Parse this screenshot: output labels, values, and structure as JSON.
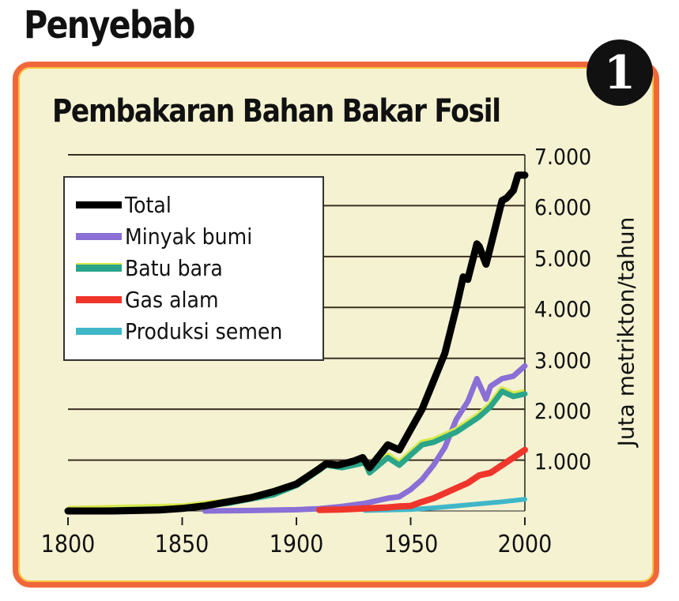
{
  "header": {
    "section_title": "Penyebab",
    "badge_number": "1"
  },
  "colors": {
    "panel_background": "#f5f2d2",
    "panel_border": "#f0673a",
    "total": "#000000",
    "minyak_bumi": "#8a6fd6",
    "batu_bara": "#2aa58a",
    "gas_alam": "#f0352a",
    "produksi_semen": "#3fb7c9"
  },
  "chart_data": {
    "type": "line",
    "title": "Pembakaran Bahan Bakar Fosil",
    "xlabel": "",
    "ylabel": "Juta metrikton/tahun",
    "xlim": [
      1800,
      2000
    ],
    "ylim": [
      0,
      7000
    ],
    "x_ticks": [
      "1800",
      "1850",
      "1900",
      "1950",
      "2000"
    ],
    "y_ticks": [
      "1.000",
      "2.000",
      "3.000",
      "4.000",
      "5.000",
      "6.000",
      "7.000"
    ],
    "grid": "horizontal",
    "legend_position": "upper-left",
    "legend": [
      "Total",
      "Minyak bumi",
      "Batu bara",
      "Gas alam",
      "Produksi semen"
    ],
    "series": [
      {
        "name": "Total",
        "x": [
          1800,
          1820,
          1840,
          1850,
          1860,
          1870,
          1880,
          1890,
          1900,
          1910,
          1913,
          1918,
          1920,
          1925,
          1929,
          1932,
          1937,
          1940,
          1945,
          1950,
          1955,
          1960,
          1965,
          1970,
          1973,
          1975,
          1979,
          1980,
          1983,
          1985,
          1990,
          1992,
          1995,
          1997,
          2000
        ],
        "y": [
          0,
          0,
          20,
          50,
          100,
          180,
          260,
          380,
          530,
          830,
          930,
          900,
          920,
          980,
          1050,
          850,
          1130,
          1300,
          1200,
          1600,
          2000,
          2550,
          3100,
          4000,
          4600,
          4550,
          5250,
          5200,
          4850,
          5200,
          6100,
          6150,
          6300,
          6600,
          6600
        ]
      },
      {
        "name": "Minyak bumi",
        "x": [
          1860,
          1880,
          1900,
          1910,
          1920,
          1930,
          1940,
          1945,
          1950,
          1955,
          1960,
          1965,
          1970,
          1975,
          1979,
          1983,
          1985,
          1990,
          1995,
          2000
        ],
        "y": [
          0,
          10,
          25,
          45,
          90,
          150,
          250,
          280,
          420,
          620,
          900,
          1250,
          1800,
          2150,
          2600,
          2200,
          2450,
          2600,
          2650,
          2850
        ]
      },
      {
        "name": "Batu bara",
        "x": [
          1800,
          1850,
          1870,
          1890,
          1900,
          1910,
          1913,
          1920,
          1930,
          1932,
          1940,
          1945,
          1950,
          1955,
          1960,
          1965,
          1970,
          1975,
          1980,
          1985,
          1990,
          1995,
          2000
        ],
        "y": [
          0,
          50,
          150,
          320,
          500,
          800,
          900,
          850,
          950,
          750,
          1050,
          900,
          1100,
          1300,
          1350,
          1450,
          1550,
          1700,
          1850,
          2050,
          2350,
          2250,
          2300
        ]
      },
      {
        "name": "Gas alam",
        "x": [
          1910,
          1920,
          1930,
          1940,
          1945,
          1950,
          1955,
          1960,
          1965,
          1970,
          1975,
          1980,
          1985,
          1990,
          1995,
          2000
        ],
        "y": [
          20,
          30,
          50,
          70,
          90,
          100,
          180,
          250,
          350,
          450,
          550,
          700,
          750,
          900,
          1050,
          1200
        ]
      },
      {
        "name": "Produksi semen",
        "x": [
          1930,
          1940,
          1950,
          1960,
          1970,
          1980,
          1990,
          2000
        ],
        "y": [
          10,
          20,
          30,
          60,
          100,
          140,
          180,
          230
        ]
      }
    ]
  }
}
